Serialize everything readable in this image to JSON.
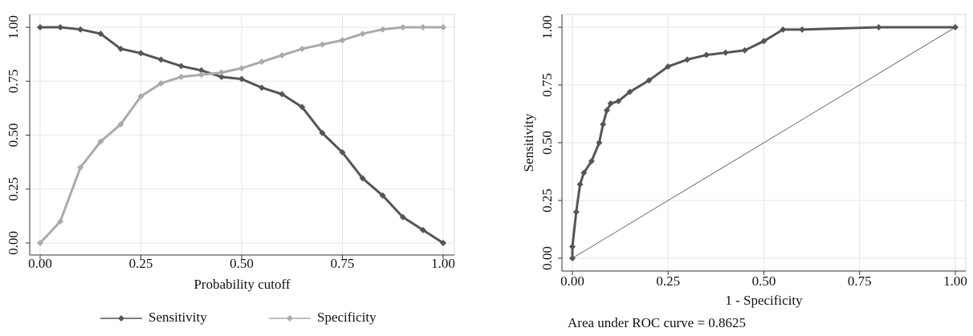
{
  "chart_data": [
    {
      "type": "line",
      "x_label": "Probability cutoff",
      "x": [
        0,
        0.05,
        0.1,
        0.15,
        0.2,
        0.25,
        0.3,
        0.35,
        0.4,
        0.45,
        0.5,
        0.55,
        0.6,
        0.65,
        0.7,
        0.75,
        0.8,
        0.85,
        0.9,
        0.95,
        1.0
      ],
      "series": [
        {
          "name": "Sensitivity",
          "color": "#555555",
          "values": [
            1.0,
            1.0,
            0.99,
            0.97,
            0.9,
            0.88,
            0.85,
            0.82,
            0.8,
            0.77,
            0.76,
            0.72,
            0.69,
            0.63,
            0.51,
            0.42,
            0.3,
            0.22,
            0.12,
            0.06,
            0.0
          ]
        },
        {
          "name": "Specificity",
          "color": "#aaaaaa",
          "values": [
            0.0,
            0.1,
            0.35,
            0.47,
            0.55,
            0.68,
            0.74,
            0.77,
            0.78,
            0.79,
            0.81,
            0.84,
            0.87,
            0.9,
            0.92,
            0.94,
            0.97,
            0.99,
            1.0,
            1.0,
            1.0
          ]
        }
      ],
      "xlim": [
        0,
        1
      ],
      "ylim": [
        0,
        1
      ],
      "xticks": [
        {
          "value": 0,
          "label": "0.00"
        },
        {
          "value": 0.25,
          "label": "0.25"
        },
        {
          "value": 0.5,
          "label": "0.50"
        },
        {
          "value": 0.75,
          "label": "0.75"
        },
        {
          "value": 1,
          "label": "1.00"
        }
      ],
      "yticks": [
        {
          "value": 0,
          "label": "0.00"
        },
        {
          "value": 0.25,
          "label": "0.25"
        },
        {
          "value": 0.5,
          "label": "0.50"
        },
        {
          "value": 0.75,
          "label": "0.75"
        },
        {
          "value": 1,
          "label": "1.00"
        }
      ],
      "grid": true,
      "legend": "bottom"
    },
    {
      "type": "line",
      "x_label": "1 - Specificity",
      "y_label": "Sensitivity",
      "note": "Area under ROC curve = 0.8625",
      "x": [
        0,
        0,
        0.01,
        0.02,
        0.03,
        0.05,
        0.07,
        0.08,
        0.09,
        0.1,
        0.12,
        0.15,
        0.2,
        0.25,
        0.3,
        0.35,
        0.4,
        0.45,
        0.5,
        0.55,
        0.6,
        0.8,
        1.0
      ],
      "series": [
        {
          "color": "#555555",
          "values": [
            0,
            0.05,
            0.2,
            0.32,
            0.37,
            0.42,
            0.5,
            0.58,
            0.64,
            0.67,
            0.68,
            0.72,
            0.77,
            0.83,
            0.86,
            0.88,
            0.89,
            0.9,
            0.94,
            0.99,
            0.99,
            1.0,
            1.0
          ]
        }
      ],
      "reference_line": {
        "x": [
          0,
          1
        ],
        "values": [
          0,
          1
        ],
        "color": "#555555"
      },
      "xlim": [
        0,
        1
      ],
      "ylim": [
        0,
        1
      ],
      "xticks": [
        {
          "value": 0,
          "label": "0.00"
        },
        {
          "value": 0.25,
          "label": "0.25"
        },
        {
          "value": 0.5,
          "label": "0.50"
        },
        {
          "value": 0.75,
          "label": "0.75"
        },
        {
          "value": 1,
          "label": "1.00"
        }
      ],
      "yticks": [
        {
          "value": 0,
          "label": "0.00"
        },
        {
          "value": 0.25,
          "label": "0.25"
        },
        {
          "value": 0.5,
          "label": "0.50"
        },
        {
          "value": 0.75,
          "label": "0.75"
        },
        {
          "value": 1,
          "label": "1.00"
        }
      ],
      "grid": true
    }
  ]
}
